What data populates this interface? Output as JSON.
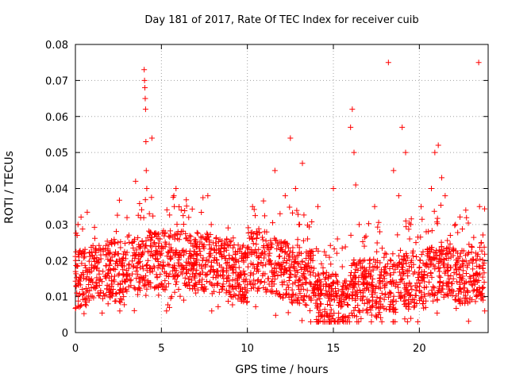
{
  "chart_data": {
    "type": "scatter",
    "title": "Day 181 of 2017, Rate Of TEC Index for receiver cuib",
    "xlabel": "GPS time / hours",
    "ylabel": "ROTI / TECUs",
    "xlim": [
      0,
      24
    ],
    "ylim": [
      0,
      0.08
    ],
    "xticks": [
      "0",
      "5",
      "10",
      "15",
      "20"
    ],
    "yticks": [
      "0",
      "0.01",
      "0.02",
      "0.03",
      "0.04",
      "0.05",
      "0.06",
      "0.07",
      "0.08"
    ],
    "grid": true,
    "marker": "+",
    "color": "#ff0000",
    "series": [
      {
        "name": "ROTI",
        "points": [
          [
            0.05,
            0.013
          ],
          [
            0.1,
            0.027
          ],
          [
            0.15,
            0.03
          ],
          [
            0.2,
            0.021
          ],
          [
            0.3,
            0.015
          ],
          [
            0.4,
            0.012
          ],
          [
            0.6,
            0.018
          ],
          [
            0.8,
            0.009
          ],
          [
            1.0,
            0.014
          ],
          [
            1.3,
            0.011
          ],
          [
            1.6,
            0.017
          ],
          [
            1.9,
            0.008
          ],
          [
            2.2,
            0.012
          ],
          [
            2.5,
            0.016
          ],
          [
            2.8,
            0.01
          ],
          [
            3.1,
            0.019
          ],
          [
            3.3,
            0.025
          ],
          [
            3.5,
            0.042
          ],
          [
            3.7,
            0.015
          ],
          [
            3.9,
            0.022
          ],
          [
            4.0,
            0.073
          ],
          [
            4.02,
            0.07
          ],
          [
            4.04,
            0.068
          ],
          [
            4.06,
            0.065
          ],
          [
            4.08,
            0.062
          ],
          [
            4.1,
            0.053
          ],
          [
            4.12,
            0.045
          ],
          [
            4.15,
            0.04
          ],
          [
            4.3,
            0.033
          ],
          [
            4.45,
            0.054
          ],
          [
            4.6,
            0.025
          ],
          [
            4.8,
            0.018
          ],
          [
            5.0,
            0.022
          ],
          [
            5.3,
            0.006
          ],
          [
            5.6,
            0.01
          ],
          [
            5.75,
            0.035
          ],
          [
            5.85,
            0.04
          ],
          [
            6.0,
            0.012
          ],
          [
            6.3,
            0.009
          ],
          [
            6.6,
            0.014
          ],
          [
            7.0,
            0.011
          ],
          [
            7.4,
            0.02
          ],
          [
            7.7,
            0.038
          ],
          [
            7.9,
            0.03
          ],
          [
            8.2,
            0.016
          ],
          [
            8.5,
            0.012
          ],
          [
            8.8,
            0.026
          ],
          [
            9.1,
            0.018
          ],
          [
            9.5,
            0.013
          ],
          [
            9.9,
            0.021
          ],
          [
            10.3,
            0.035
          ],
          [
            10.6,
            0.019
          ],
          [
            11.0,
            0.028
          ],
          [
            11.3,
            0.022
          ],
          [
            11.6,
            0.045
          ],
          [
            11.9,
            0.033
          ],
          [
            12.2,
            0.038
          ],
          [
            12.5,
            0.054
          ],
          [
            12.8,
            0.04
          ],
          [
            13.0,
            0.03
          ],
          [
            13.2,
            0.047
          ],
          [
            13.5,
            0.026
          ],
          [
            13.8,
            0.02
          ],
          [
            14.1,
            0.035
          ],
          [
            14.4,
            0.018
          ],
          [
            14.7,
            0.015
          ],
          [
            15.0,
            0.04
          ],
          [
            15.2,
            0.022
          ],
          [
            15.5,
            0.012
          ],
          [
            15.8,
            0.01
          ],
          [
            16.0,
            0.057
          ],
          [
            16.1,
            0.062
          ],
          [
            16.2,
            0.05
          ],
          [
            16.3,
            0.041
          ],
          [
            16.5,
            0.03
          ],
          [
            16.8,
            0.024
          ],
          [
            17.1,
            0.02
          ],
          [
            17.4,
            0.035
          ],
          [
            17.7,
            0.028
          ],
          [
            18.0,
            0.022
          ],
          [
            18.2,
            0.075
          ],
          [
            18.5,
            0.045
          ],
          [
            18.8,
            0.038
          ],
          [
            19.0,
            0.057
          ],
          [
            19.2,
            0.05
          ],
          [
            19.5,
            0.03
          ],
          [
            19.8,
            0.025
          ],
          [
            20.1,
            0.035
          ],
          [
            20.4,
            0.028
          ],
          [
            20.7,
            0.04
          ],
          [
            20.9,
            0.05
          ],
          [
            21.1,
            0.052
          ],
          [
            21.3,
            0.043
          ],
          [
            21.5,
            0.038
          ],
          [
            21.8,
            0.027
          ],
          [
            22.1,
            0.03
          ],
          [
            22.4,
            0.022
          ],
          [
            22.7,
            0.034
          ],
          [
            23.0,
            0.02
          ],
          [
            23.3,
            0.016
          ],
          [
            23.45,
            0.075
          ],
          [
            23.5,
            0.035
          ],
          [
            23.6,
            0.025
          ],
          [
            23.7,
            0.009
          ],
          [
            23.8,
            0.006
          ]
        ]
      }
    ]
  }
}
